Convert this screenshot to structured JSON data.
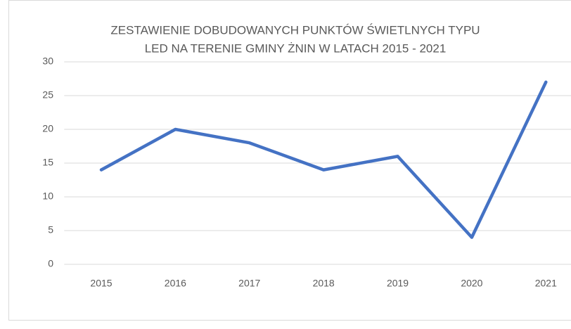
{
  "chart_data": {
    "type": "line",
    "title": [
      "ZESTAWIENIE DOBUDOWANYCH PUNKTÓW ŚWIETLNYCH TYPU",
      "LED NA TERENIE GMINY ŻNIN W LATACH 2015 - 2021"
    ],
    "categories": [
      "2015",
      "2016",
      "2017",
      "2018",
      "2019",
      "2020",
      "2021"
    ],
    "values": [
      14,
      20,
      18,
      14,
      16,
      4,
      27
    ],
    "color": "#4472c4",
    "ylim": [
      0,
      30
    ],
    "yticks": [
      0,
      5,
      10,
      15,
      20,
      25,
      30
    ],
    "grid": true
  }
}
